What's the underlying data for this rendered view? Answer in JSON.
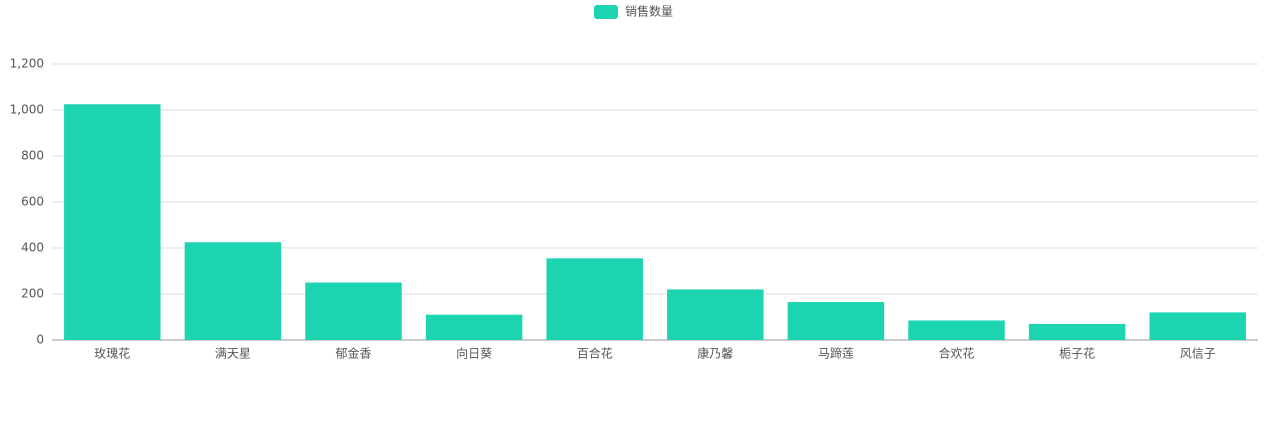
{
  "chart_data": {
    "type": "bar",
    "legend": "销售数量",
    "categories": [
      "玫瑰花",
      "满天星",
      "郁金香",
      "向日葵",
      "百合花",
      "康乃馨",
      "马蹄莲",
      "合欢花",
      "栀子花",
      "风信子"
    ],
    "values": [
      1025,
      425,
      250,
      110,
      355,
      220,
      165,
      85,
      70,
      120
    ],
    "color": "#1dd4b0",
    "ylim": [
      0,
      1200
    ],
    "yticks": [
      0,
      200,
      400,
      600,
      800,
      {
        "value": 1000,
        "label": "1,000"
      },
      {
        "value": 1200,
        "label": "1,200"
      }
    ],
    "grid": true
  }
}
